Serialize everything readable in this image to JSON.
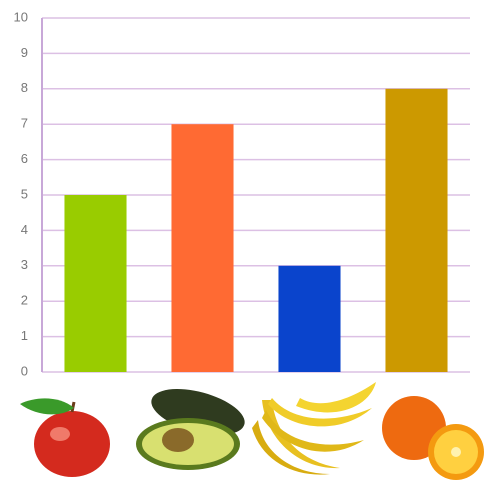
{
  "chart_data": {
    "type": "bar",
    "categories": [
      null,
      null,
      null,
      null
    ],
    "values": [
      5,
      7,
      3,
      8
    ],
    "colors": [
      "#99cc00",
      "#ff6a33",
      "#0a44cc",
      "#cc9900"
    ],
    "ylim": [
      0,
      10
    ],
    "yticks": [
      0,
      1,
      2,
      3,
      4,
      5,
      6,
      7,
      8,
      9,
      10
    ],
    "grid": true
  }
}
